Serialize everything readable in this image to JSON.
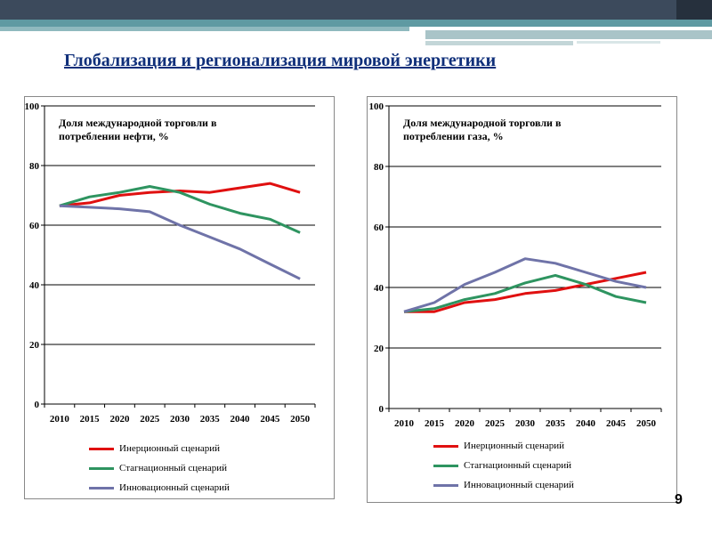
{
  "title": "Глобализация и регионализация мировой энергетики",
  "page_number": "9",
  "colors": {
    "inertial": "#e01010",
    "stagnation": "#2e9460",
    "innovation": "#6f73a8"
  },
  "chart_data": [
    {
      "type": "line",
      "title": "Доля международной торговли в потреблении нефти, %",
      "x": [
        "2010",
        "2015",
        "2020",
        "2025",
        "2030",
        "2035",
        "2040",
        "2045",
        "2050"
      ],
      "ylim": [
        0,
        100
      ],
      "yticks": [
        0,
        20,
        40,
        60,
        80,
        100
      ],
      "grid": true,
      "legend_position": "bottom",
      "series": [
        {
          "name": "Инерционный сценарий",
          "color": "#e01010",
          "values": [
            66.5,
            67.5,
            70,
            71,
            71.5,
            71,
            72.5,
            74,
            71
          ]
        },
        {
          "name": "Стагнационный сценарий",
          "color": "#2e9460",
          "values": [
            66.5,
            69.5,
            71,
            73,
            71,
            67,
            64,
            62,
            57.5
          ]
        },
        {
          "name": "Инновационный сценарий",
          "color": "#6f73a8",
          "values": [
            66.5,
            66,
            65.5,
            64.5,
            60,
            56,
            52,
            47,
            42
          ]
        }
      ]
    },
    {
      "type": "line",
      "title": "Доля международной торговли в потреблении газа, %",
      "x": [
        "2010",
        "2015",
        "2020",
        "2025",
        "2030",
        "2035",
        "2040",
        "2045",
        "2050"
      ],
      "ylim": [
        0,
        100
      ],
      "yticks": [
        0,
        20,
        40,
        60,
        80,
        100
      ],
      "grid": true,
      "legend_position": "bottom",
      "series": [
        {
          "name": "Инерционный сценарий",
          "color": "#e01010",
          "values": [
            32,
            32,
            35,
            36,
            38,
            39,
            41,
            43,
            45
          ]
        },
        {
          "name": "Стагнационный сценарий",
          "color": "#2e9460",
          "values": [
            32,
            33,
            36,
            38,
            41.5,
            44,
            41,
            37,
            35
          ]
        },
        {
          "name": "Инновационный сценарий",
          "color": "#6f73a8",
          "values": [
            32,
            35,
            41,
            45,
            49.5,
            48,
            45,
            42,
            40
          ]
        }
      ]
    }
  ]
}
